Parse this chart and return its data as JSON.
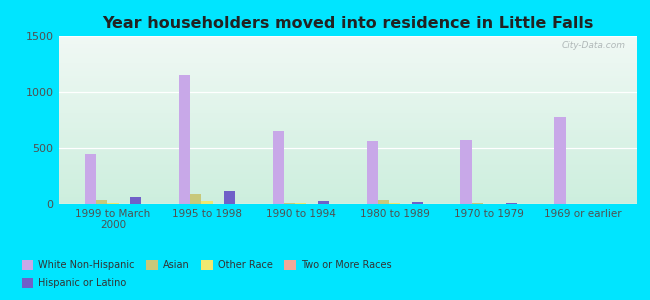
{
  "title": "Year householders moved into residence in Little Falls",
  "categories": [
    "1999 to March\n2000",
    "1995 to 1998",
    "1990 to 1994",
    "1980 to 1989",
    "1970 to 1979",
    "1969 or earlier"
  ],
  "series": {
    "White Non-Hispanic": [
      450,
      1150,
      650,
      560,
      570,
      775
    ],
    "Asian": [
      35,
      85,
      12,
      40,
      5,
      3
    ],
    "Other Race": [
      10,
      25,
      8,
      5,
      3,
      3
    ],
    "Two or More Races": [
      4,
      4,
      4,
      4,
      4,
      4
    ],
    "Hispanic or Latino": [
      65,
      115,
      28,
      22,
      5,
      3
    ]
  },
  "colors": {
    "White Non-Hispanic": "#c8a8e8",
    "Asian": "#c8c87a",
    "Other Race": "#f0e870",
    "Two or More Races": "#f0a898",
    "Hispanic or Latino": "#7060c8"
  },
  "background_outer": "#00e5ff",
  "background_inner_top": "#f0f8f4",
  "background_inner_bottom": "#cceedd",
  "ylim": [
    0,
    1500
  ],
  "yticks": [
    0,
    500,
    1000,
    1500
  ],
  "watermark": "City-Data.com",
  "bar_width": 0.12,
  "legend_row1": [
    "White Non-Hispanic",
    "Asian",
    "Other Race",
    "Two or More Races"
  ],
  "legend_row2": [
    "Hispanic or Latino"
  ]
}
